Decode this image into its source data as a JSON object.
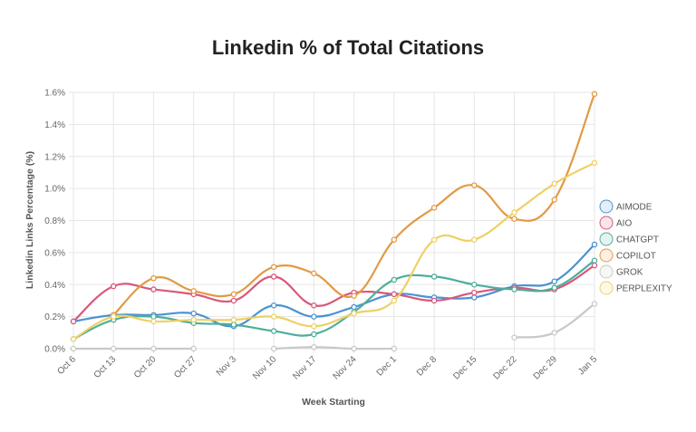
{
  "chart_data": {
    "type": "line",
    "title": "Linkedin % of Total Citations",
    "xlabel": "Week Starting",
    "ylabel": "Linkedin Links Percentage (%)",
    "ylim": [
      0,
      1.6
    ],
    "yticks": [
      "0.0%",
      "0.2%",
      "0.4%",
      "0.6%",
      "0.8%",
      "1.0%",
      "1.2%",
      "1.4%",
      "1.6%"
    ],
    "ytick_values": [
      0,
      0.2,
      0.4,
      0.6,
      0.8,
      1.0,
      1.2,
      1.4,
      1.6
    ],
    "grid": true,
    "legend_position": "right",
    "categories": [
      "Oct 6",
      "Oct 13",
      "Oct 20",
      "Oct 27",
      "Nov 3",
      "Nov 10",
      "Nov 17",
      "Nov 24",
      "Dec 1",
      "Dec 8",
      "Dec 15",
      "Dec 22",
      "Dec 29",
      "Jan 5"
    ],
    "series": [
      {
        "name": "AIMODE",
        "color": "#4b93d1",
        "values": [
          0.17,
          0.21,
          0.21,
          0.22,
          0.14,
          0.27,
          0.2,
          0.26,
          0.34,
          0.32,
          0.32,
          0.39,
          0.42,
          0.65
        ]
      },
      {
        "name": "AIO",
        "color": "#d9577a",
        "values": [
          0.17,
          0.39,
          0.37,
          0.34,
          0.3,
          0.45,
          0.27,
          0.35,
          0.34,
          0.3,
          0.35,
          0.38,
          0.37,
          0.52
        ]
      },
      {
        "name": "CHATGPT",
        "color": "#4fae9b",
        "values": [
          0.06,
          0.18,
          0.2,
          0.16,
          0.15,
          0.11,
          0.09,
          0.23,
          0.43,
          0.45,
          0.4,
          0.37,
          0.38,
          0.55
        ]
      },
      {
        "name": "COPILOT",
        "color": "#e29a44",
        "values": [
          null,
          0.21,
          0.44,
          0.36,
          0.34,
          0.51,
          0.47,
          0.33,
          0.68,
          0.88,
          1.02,
          0.81,
          0.93,
          1.59
        ]
      },
      {
        "name": "GROK",
        "color": "#c8c8c8",
        "values": [
          0,
          0,
          0,
          0,
          null,
          0,
          0.01,
          0,
          0,
          null,
          null,
          0.07,
          0.1,
          0.28
        ]
      },
      {
        "name": "PERPLEXITY",
        "color": "#efd064",
        "values": [
          0.06,
          0.2,
          0.17,
          0.18,
          0.18,
          0.2,
          0.14,
          0.22,
          0.3,
          0.68,
          0.68,
          0.85,
          1.03,
          1.16
        ]
      }
    ]
  }
}
